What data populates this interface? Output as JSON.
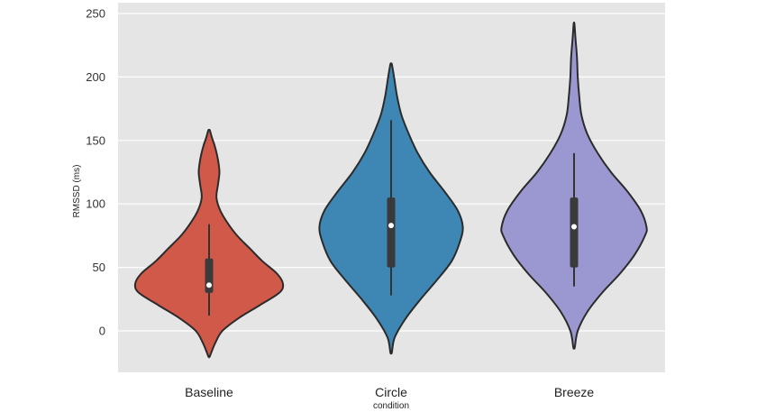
{
  "chart_data": {
    "type": "violin",
    "xlabel": "condition",
    "ylabel": "RMSSD (ms)",
    "ylim": [
      -32,
      252
    ],
    "yticks": [
      0,
      50,
      100,
      150,
      200,
      250
    ],
    "grid": true,
    "background": "#e5e5e5",
    "categories": [
      "Baseline",
      "Circle",
      "Breeze"
    ],
    "series": [
      {
        "category": "Baseline",
        "color": "#d1594a",
        "min": -20,
        "max": 158,
        "whisker_low": 12,
        "q1": 30,
        "median": 36,
        "q3": 57,
        "whisker_high": 84,
        "density": [
          [
            -20,
            0.01
          ],
          [
            -10,
            0.08
          ],
          [
            0,
            0.18
          ],
          [
            10,
            0.4
          ],
          [
            20,
            0.68
          ],
          [
            30,
            0.95
          ],
          [
            37,
            1.0
          ],
          [
            45,
            0.92
          ],
          [
            55,
            0.72
          ],
          [
            65,
            0.55
          ],
          [
            75,
            0.38
          ],
          [
            85,
            0.25
          ],
          [
            95,
            0.15
          ],
          [
            105,
            0.1
          ],
          [
            115,
            0.12
          ],
          [
            125,
            0.14
          ],
          [
            135,
            0.12
          ],
          [
            145,
            0.08
          ],
          [
            152,
            0.04
          ],
          [
            158,
            0.01
          ]
        ]
      },
      {
        "category": "Circle",
        "color": "#3e87b5",
        "min": -17,
        "max": 210,
        "whisker_low": 28,
        "q1": 50,
        "median": 83,
        "q3": 105,
        "whisker_high": 166,
        "density": [
          [
            -17,
            0.01
          ],
          [
            -5,
            0.05
          ],
          [
            10,
            0.2
          ],
          [
            25,
            0.4
          ],
          [
            40,
            0.62
          ],
          [
            55,
            0.82
          ],
          [
            70,
            0.93
          ],
          [
            82,
            0.97
          ],
          [
            95,
            0.9
          ],
          [
            110,
            0.72
          ],
          [
            125,
            0.52
          ],
          [
            140,
            0.36
          ],
          [
            155,
            0.24
          ],
          [
            170,
            0.14
          ],
          [
            185,
            0.08
          ],
          [
            200,
            0.04
          ],
          [
            210,
            0.01
          ]
        ]
      },
      {
        "category": "Breeze",
        "color": "#9b97d0",
        "min": -13,
        "max": 242,
        "whisker_low": 35,
        "q1": 50,
        "median": 82,
        "q3": 105,
        "whisker_high": 140,
        "density": [
          [
            -13,
            0.01
          ],
          [
            0,
            0.05
          ],
          [
            15,
            0.18
          ],
          [
            30,
            0.38
          ],
          [
            45,
            0.62
          ],
          [
            60,
            0.82
          ],
          [
            75,
            0.96
          ],
          [
            82,
            0.98
          ],
          [
            95,
            0.9
          ],
          [
            110,
            0.72
          ],
          [
            125,
            0.5
          ],
          [
            140,
            0.32
          ],
          [
            155,
            0.18
          ],
          [
            170,
            0.1
          ],
          [
            185,
            0.07
          ],
          [
            200,
            0.05
          ],
          [
            215,
            0.04
          ],
          [
            230,
            0.02
          ],
          [
            242,
            0.005
          ]
        ]
      }
    ]
  }
}
